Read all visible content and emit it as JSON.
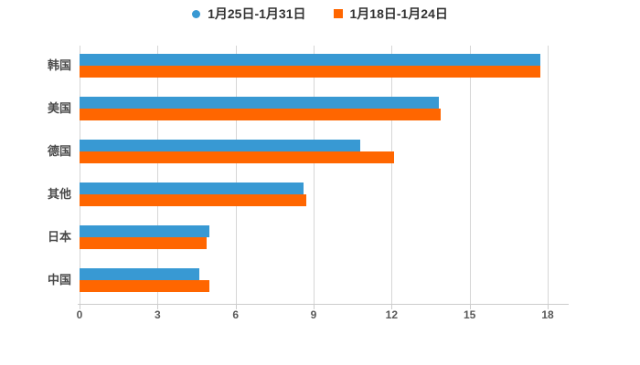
{
  "chart_data": {
    "type": "bar",
    "orientation": "horizontal",
    "title": "",
    "xlabel": "",
    "ylabel": "",
    "categories": [
      "韩国",
      "美国",
      "德国",
      "其他",
      "日本",
      "中国"
    ],
    "series": [
      {
        "name": "1月25日-1月31日",
        "color": "#3899D3",
        "marker": "circle",
        "values": [
          17.7,
          13.8,
          10.8,
          8.6,
          5.0,
          4.6
        ]
      },
      {
        "name": "1月18日-1月24日",
        "color": "#FF6600",
        "marker": "square",
        "values": [
          17.7,
          13.9,
          12.1,
          8.7,
          4.9,
          5.0
        ]
      }
    ],
    "x_ticks": [
      0,
      3,
      6,
      9,
      12,
      15,
      18
    ],
    "xlim": [
      0,
      18.7
    ],
    "grid": "vertical",
    "legend_position": "top-center"
  },
  "colors": {
    "grid": "#D6D6D6",
    "axis": "#CCCCCC",
    "tick_text": "#595959",
    "category_text": "#4A4A4A",
    "legend_text": "#333333",
    "background": "#FFFFFF"
  }
}
